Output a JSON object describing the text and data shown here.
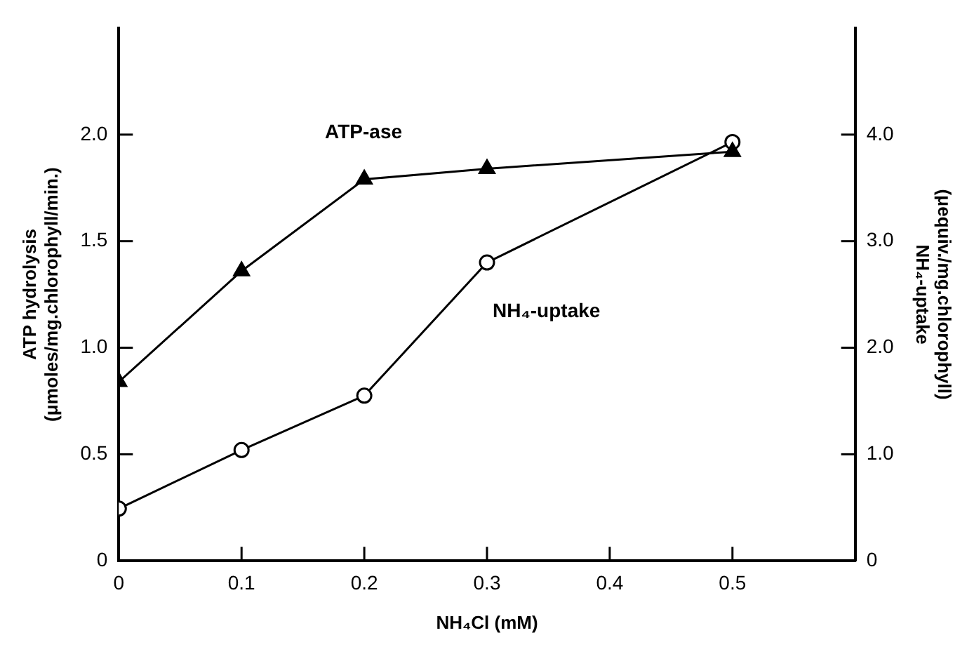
{
  "chart_data": {
    "type": "line",
    "xlabel": "NH₄Cl (mM)",
    "ylabel": [
      "ATP hydrolysis",
      "(μmoles/mg.chlorophyll/min.)"
    ],
    "y2label": [
      "(μequiv./mg.chlorophyll)",
      "NH₄-uptake"
    ],
    "x": [
      0,
      0.1,
      0.2,
      0.3,
      0.5
    ],
    "xlim": [
      0,
      0.6
    ],
    "xticks": [
      0,
      0.1,
      0.2,
      0.3,
      0.4,
      0.5
    ],
    "ylim": [
      0,
      2.5
    ],
    "yticks": [
      0,
      0.5,
      {
        "value": 1,
        "label": "1.0"
      },
      1.5,
      {
        "value": 2,
        "label": "2.0"
      }
    ],
    "y2lim": [
      0,
      5
    ],
    "y2ticks": [
      0,
      {
        "value": 1,
        "label": "1.0"
      },
      {
        "value": 2,
        "label": "2.0"
      },
      {
        "value": 3,
        "label": "3.0"
      },
      {
        "value": 4,
        "label": "4.0"
      }
    ],
    "series": [
      {
        "name": "ATP-ase",
        "color": "#000000",
        "marker": "triangle",
        "values": [
          0.84,
          1.36,
          1.79,
          1.84,
          1.92
        ]
      },
      {
        "name": "NH₄-uptake",
        "color": "#000000",
        "marker": "circle",
        "axis": "y2",
        "values": [
          0.49,
          1.04,
          1.55,
          2.8,
          3.93
        ]
      }
    ],
    "grid": false,
    "legend": false
  }
}
